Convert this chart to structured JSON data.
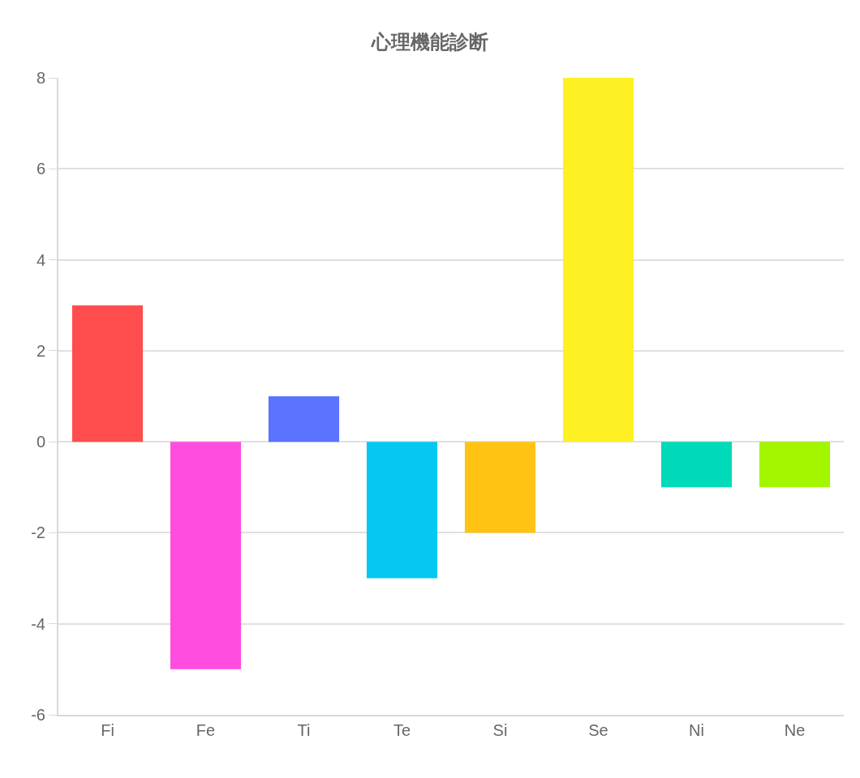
{
  "chart_data": {
    "type": "bar",
    "title": "心理機能診断",
    "categories": [
      "Fi",
      "Fe",
      "Ti",
      "Te",
      "Si",
      "Se",
      "Ni",
      "Ne"
    ],
    "values": [
      3,
      -5,
      1,
      -3,
      -2,
      8,
      -1,
      -1
    ],
    "colors": [
      "#ff4d4d",
      "#ff4de0",
      "#5b73ff",
      "#05c8f0",
      "#ffc413",
      "#fff024",
      "#00dab8",
      "#a3f500"
    ],
    "ylim": [
      -6,
      8
    ],
    "yticks": [
      -6,
      -4,
      -2,
      0,
      2,
      4,
      6,
      8
    ],
    "grid": "y"
  }
}
